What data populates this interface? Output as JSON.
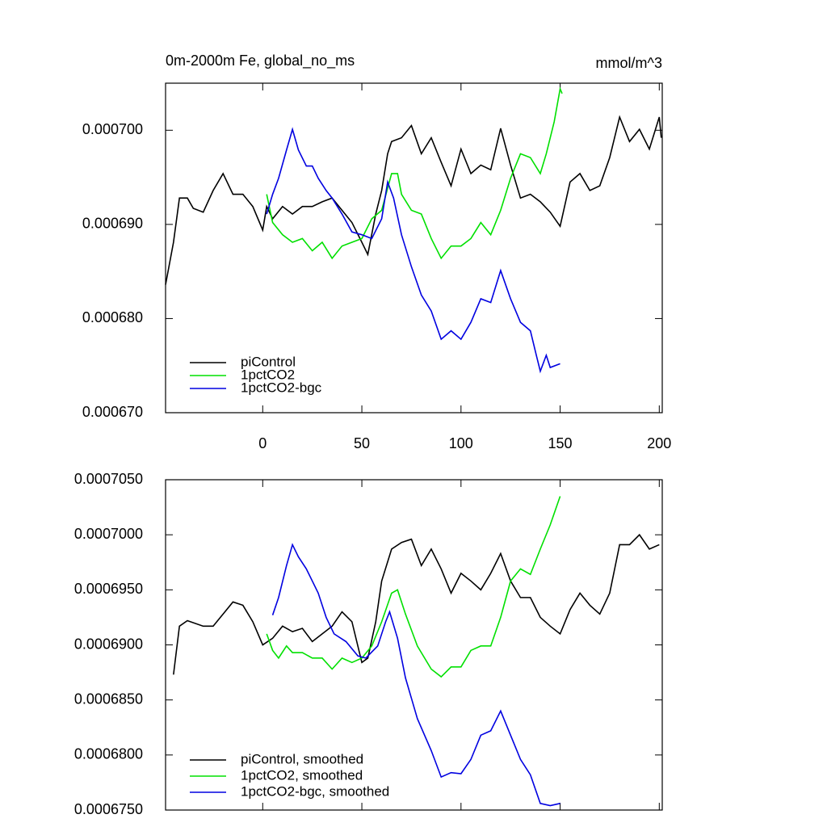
{
  "chart_data": [
    {
      "type": "line",
      "title": "0m-2000m Fe, global_no_ms",
      "units": "mmol/m^3",
      "xlim": [
        -49,
        201.5
      ],
      "xticks": [
        0,
        50,
        100,
        150,
        200
      ],
      "ylim": [
        0.00067,
        0.000705
      ],
      "yticks": [
        {
          "value": 0.00067,
          "label": "0.000670"
        },
        {
          "value": 0.00068,
          "label": "0.000680"
        },
        {
          "value": 0.00069,
          "label": "0.000690"
        },
        {
          "value": 0.0007,
          "label": "0.000700"
        }
      ],
      "legend": "lower-left",
      "series": [
        {
          "name": "piControl",
          "color": "#000000",
          "x": [
            -49,
            -45,
            -42,
            -38,
            -35,
            -30,
            -25,
            -20,
            -15,
            -10,
            -5,
            0,
            2,
            5,
            10,
            15,
            20,
            25,
            30,
            35,
            40,
            45,
            50,
            53,
            57,
            60,
            63,
            65,
            70,
            75,
            80,
            85,
            90,
            95,
            100,
            105,
            110,
            115,
            120,
            125,
            130,
            135,
            140,
            145,
            150,
            155,
            160,
            165,
            170,
            175,
            180,
            185,
            190,
            195,
            200,
            201
          ],
          "values": [
            0.0006836,
            0.0006881,
            0.0006928,
            0.0006928,
            0.0006917,
            0.0006913,
            0.0006936,
            0.0006954,
            0.0006932,
            0.0006932,
            0.0006919,
            0.0006894,
            0.0006919,
            0.0006906,
            0.0006919,
            0.0006911,
            0.0006919,
            0.0006919,
            0.0006924,
            0.0006928,
            0.0006915,
            0.0006902,
            0.0006881,
            0.0006868,
            0.0006911,
            0.0006936,
            0.0006975,
            0.0006988,
            0.0006992,
            0.0007005,
            0.0006975,
            0.0006992,
            0.0006966,
            0.0006941,
            0.000698,
            0.0006954,
            0.0006963,
            0.0006958,
            0.0007002,
            0.0006963,
            0.0006928,
            0.0006932,
            0.0006924,
            0.0006913,
            0.0006898,
            0.0006945,
            0.0006954,
            0.0006936,
            0.0006941,
            0.0006971,
            0.0007014,
            0.0006988,
            0.0007001,
            0.000698,
            0.0007014,
            0.0006992
          ]
        },
        {
          "name": "1pctCO2",
          "color": "#00e000",
          "x": [
            2,
            5,
            10,
            15,
            20,
            25,
            30,
            35,
            40,
            45,
            50,
            55,
            60,
            65,
            68,
            70,
            75,
            80,
            85,
            90,
            95,
            100,
            105,
            110,
            115,
            120,
            125,
            130,
            135,
            140,
            143,
            147,
            150,
            151
          ],
          "values": [
            0.0006932,
            0.0006902,
            0.0006889,
            0.0006881,
            0.0006885,
            0.0006872,
            0.0006881,
            0.0006864,
            0.0006877,
            0.0006881,
            0.0006885,
            0.0006906,
            0.0006915,
            0.0006954,
            0.0006954,
            0.0006932,
            0.0006915,
            0.0006911,
            0.0006885,
            0.0006864,
            0.0006877,
            0.0006877,
            0.0006885,
            0.0006902,
            0.0006889,
            0.0006915,
            0.0006949,
            0.0006975,
            0.0006971,
            0.0006954,
            0.0006975,
            0.0007009,
            0.0007044,
            0.0007039
          ]
        },
        {
          "name": "1pctCO2-bgc",
          "color": "#0000e0",
          "x": [
            2,
            5,
            8,
            12,
            15,
            18,
            22,
            25,
            28,
            32,
            35,
            40,
            45,
            50,
            55,
            60,
            63,
            66,
            70,
            75,
            80,
            85,
            90,
            95,
            100,
            105,
            110,
            115,
            120,
            125,
            130,
            135,
            138,
            140,
            143,
            145,
            150
          ],
          "values": [
            0.0006911,
            0.0006932,
            0.0006949,
            0.0006979,
            0.0007001,
            0.0006979,
            0.0006962,
            0.0006962,
            0.0006949,
            0.0006936,
            0.0006928,
            0.0006911,
            0.0006892,
            0.0006889,
            0.0006885,
            0.0006906,
            0.0006945,
            0.0006928,
            0.0006889,
            0.0006855,
            0.0006825,
            0.0006808,
            0.0006778,
            0.0006787,
            0.0006778,
            0.0006796,
            0.0006821,
            0.0006817,
            0.0006851,
            0.0006821,
            0.0006796,
            0.0006787,
            0.0006761,
            0.0006744,
            0.0006761,
            0.0006748,
            0.0006752
          ]
        }
      ]
    },
    {
      "type": "line",
      "xlim": [
        -49,
        201.5
      ],
      "xticks": [
        0,
        50,
        100,
        150,
        200
      ],
      "ylim": [
        0.000675,
        0.000705
      ],
      "yticks": [
        {
          "value": 0.000675,
          "label": "0.0006750"
        },
        {
          "value": 0.00068,
          "label": "0.0006800"
        },
        {
          "value": 0.000685,
          "label": "0.0006850"
        },
        {
          "value": 0.00069,
          "label": "0.0006900"
        },
        {
          "value": 0.000695,
          "label": "0.0006950"
        },
        {
          "value": 0.0007,
          "label": "0.0007000"
        },
        {
          "value": 0.000705,
          "label": "0.0007050"
        }
      ],
      "legend": "lower-left",
      "series": [
        {
          "name": "piControl, smoothed",
          "color": "#000000",
          "x": [
            -45,
            -42,
            -38,
            -30,
            -25,
            -20,
            -15,
            -10,
            -5,
            0,
            5,
            10,
            15,
            20,
            25,
            30,
            35,
            40,
            45,
            50,
            53,
            57,
            60,
            65,
            70,
            75,
            80,
            85,
            90,
            95,
            100,
            105,
            110,
            115,
            120,
            125,
            130,
            135,
            140,
            145,
            150,
            155,
            160,
            165,
            170,
            175,
            180,
            185,
            190,
            195,
            200
          ],
          "values": [
            0.0006873,
            0.0006917,
            0.0006922,
            0.0006917,
            0.0006917,
            0.0006928,
            0.0006939,
            0.0006936,
            0.0006921,
            0.00069,
            0.0006906,
            0.0006917,
            0.0006912,
            0.0006915,
            0.0006903,
            0.000691,
            0.0006917,
            0.000693,
            0.0006921,
            0.0006884,
            0.0006888,
            0.0006921,
            0.0006958,
            0.0006987,
            0.0006993,
            0.0006996,
            0.0006972,
            0.0006987,
            0.0006969,
            0.0006947,
            0.0006965,
            0.0006958,
            0.000695,
            0.0006965,
            0.0006983,
            0.0006958,
            0.0006943,
            0.0006943,
            0.0006925,
            0.0006917,
            0.000691,
            0.0006932,
            0.0006947,
            0.0006936,
            0.0006928,
            0.0006947,
            0.0006991,
            0.0006991,
            0.0007,
            0.0006987,
            0.0006991
          ]
        },
        {
          "name": "1pctCO2, smoothed",
          "color": "#00e000",
          "x": [
            2,
            5,
            8,
            12,
            15,
            20,
            25,
            30,
            35,
            40,
            45,
            50,
            55,
            60,
            65,
            68,
            72,
            78,
            85,
            90,
            95,
            100,
            105,
            110,
            115,
            120,
            125,
            130,
            135,
            140,
            145,
            150
          ],
          "values": [
            0.000691,
            0.0006895,
            0.0006888,
            0.0006899,
            0.0006893,
            0.0006893,
            0.0006888,
            0.0006888,
            0.0006878,
            0.0006888,
            0.0006884,
            0.0006888,
            0.0006899,
            0.0006921,
            0.0006947,
            0.000695,
            0.0006928,
            0.0006899,
            0.0006878,
            0.0006871,
            0.000688,
            0.000688,
            0.0006895,
            0.0006899,
            0.0006899,
            0.0006925,
            0.0006958,
            0.0006969,
            0.0006964,
            0.0006987,
            0.0007009,
            0.0007035
          ]
        },
        {
          "name": "1pctCO2-bgc, smoothed",
          "color": "#0000e0",
          "x": [
            5,
            8,
            12,
            15,
            18,
            22,
            28,
            32,
            36,
            42,
            48,
            52,
            58,
            62,
            64,
            68,
            72,
            78,
            85,
            90,
            95,
            100,
            105,
            110,
            115,
            120,
            125,
            130,
            135,
            140,
            145,
            150
          ],
          "values": [
            0.0006927,
            0.0006943,
            0.0006972,
            0.0006991,
            0.000698,
            0.0006969,
            0.0006947,
            0.0006925,
            0.000691,
            0.0006903,
            0.000689,
            0.0006888,
            0.0006899,
            0.0006921,
            0.000693,
            0.0006906,
            0.000687,
            0.0006833,
            0.0006804,
            0.000678,
            0.0006784,
            0.0006783,
            0.0006796,
            0.0006818,
            0.0006822,
            0.000684,
            0.0006818,
            0.0006796,
            0.0006782,
            0.0006756,
            0.0006754,
            0.0006756
          ]
        }
      ]
    }
  ]
}
